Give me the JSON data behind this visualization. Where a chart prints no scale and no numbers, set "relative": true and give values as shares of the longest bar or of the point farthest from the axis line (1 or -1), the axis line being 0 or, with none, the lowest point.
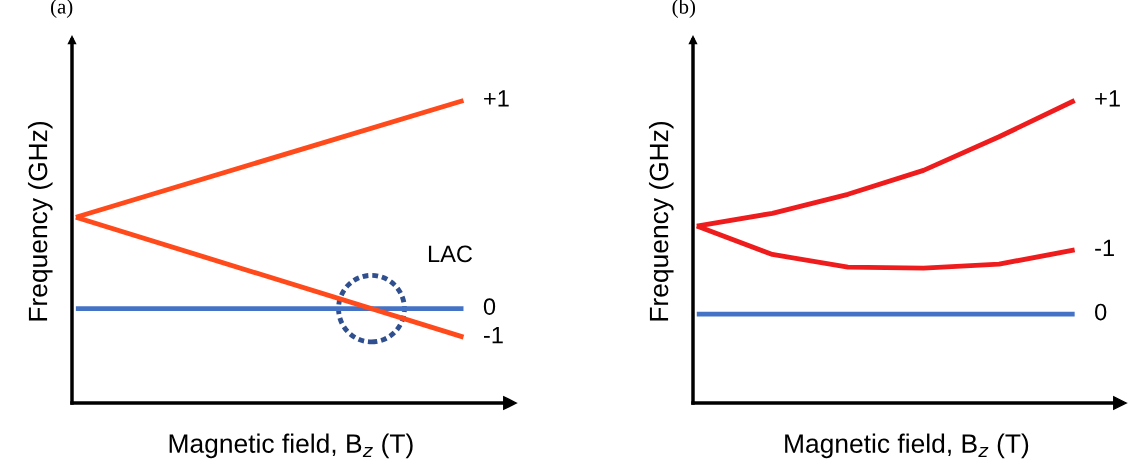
{
  "chart_data": [
    {
      "type": "line",
      "title": "(a)",
      "xlabel": "Magnetic field, B$_{z}$ (T)",
      "ylabel": "Frequency (GHz)",
      "relative": true,
      "categories": [
        null,
        null
      ],
      "legend": false,
      "grid": false,
      "tick_labels": false,
      "annotations": [
        "LAC"
      ],
      "series": [
        {
          "name": "+1",
          "color": "#ff4a1c",
          "values": [
            0.614,
            1
          ]
        },
        {
          "name": "0",
          "color": "#4472c4",
          "values": [
            0.312,
            0.312
          ]
        },
        {
          "name": "-1",
          "color": "#ff4a1c",
          "values": [
            0.614,
            0.218
          ]
        }
      ]
    },
    {
      "type": "line",
      "title": "(b)",
      "xlabel": "Magnetic field, B$_{z}$ (T)",
      "ylabel": "Frequency (GHz)",
      "relative": true,
      "categories": [
        null,
        null,
        null,
        null,
        null,
        null
      ],
      "legend": false,
      "grid": false,
      "tick_labels": false,
      "series": [
        {
          "name": "+1",
          "color": "#ee1c1c",
          "values": [
            0.585,
            0.627,
            0.69,
            0.769,
            0.88,
            1
          ]
        },
        {
          "name": "-1",
          "color": "#ee1c1c",
          "values": [
            0.585,
            0.491,
            0.449,
            0.446,
            0.459,
            0.506
          ]
        },
        {
          "name": "0",
          "color": "#4472c4",
          "values": [
            0.294,
            0.294,
            0.294,
            0.294,
            0.294,
            0.294
          ]
        }
      ]
    }
  ]
}
